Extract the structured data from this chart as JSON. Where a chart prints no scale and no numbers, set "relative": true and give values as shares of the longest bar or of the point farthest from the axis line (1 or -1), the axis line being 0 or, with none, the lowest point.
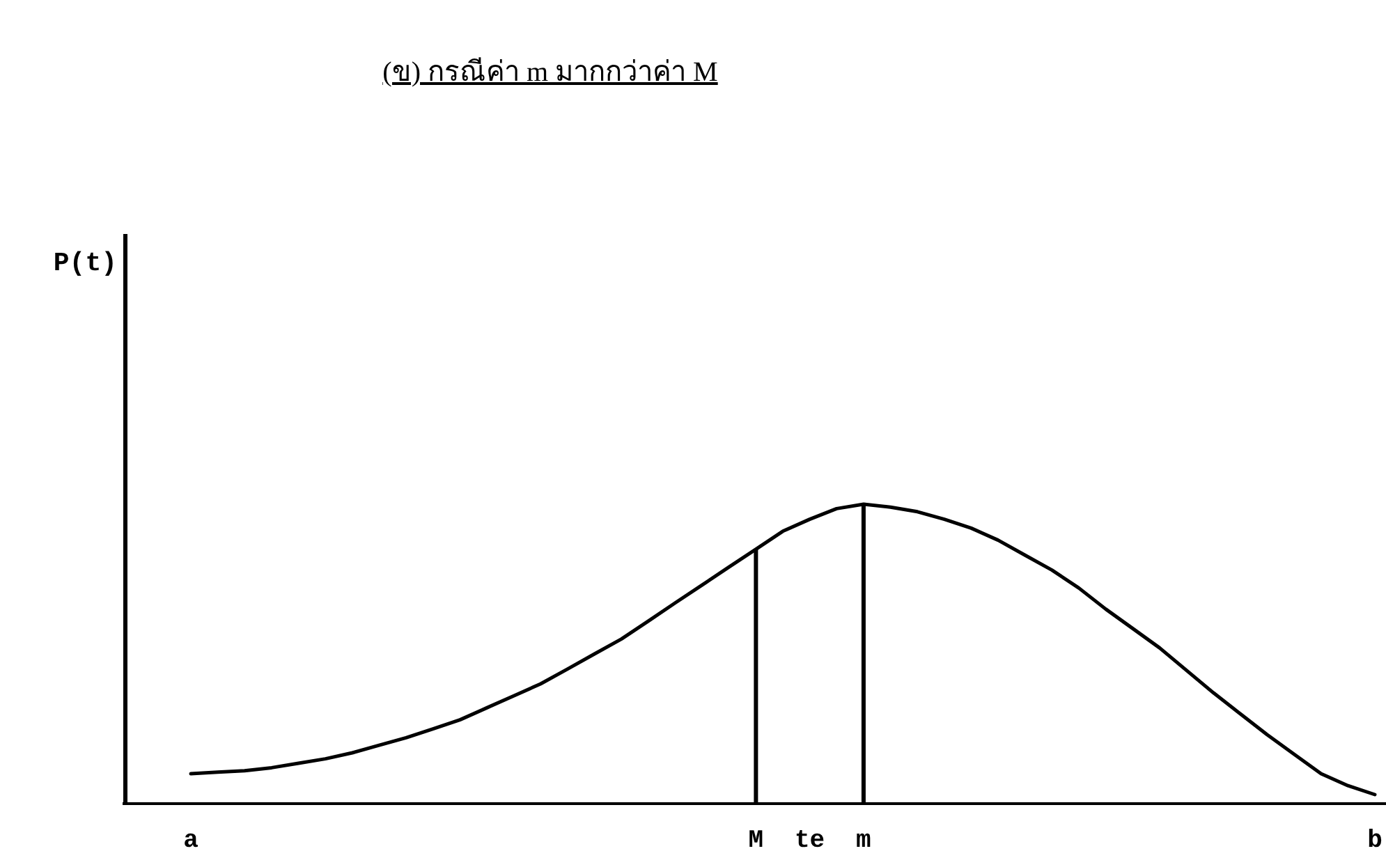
{
  "chart_data": {
    "type": "line",
    "title": "(ข) กรณีค่า m มากกว่าค่า M",
    "annotations": [
      "P(t)"
    ],
    "relative": true,
    "color": "#000000",
    "categories": [
      "a",
      null,
      null,
      null,
      null,
      null,
      null,
      null,
      null,
      null,
      null,
      null,
      null,
      null,
      null,
      null,
      null,
      null,
      null,
      null,
      null,
      "M",
      null,
      "te",
      null,
      "m",
      null,
      null,
      null,
      null,
      null,
      null,
      null,
      null,
      null,
      null,
      null,
      null,
      null,
      null,
      null,
      null,
      null,
      null,
      "b"
    ],
    "values": [
      0.1,
      0.105,
      0.11,
      0.12,
      0.135,
      0.15,
      0.17,
      0.195,
      0.22,
      0.25,
      0.28,
      0.32,
      0.36,
      0.4,
      0.45,
      0.5,
      0.55,
      0.61,
      0.67,
      0.73,
      0.79,
      0.85,
      0.91,
      0.95,
      0.985,
      1,
      0.99,
      0.975,
      0.95,
      0.92,
      0.88,
      0.83,
      0.78,
      0.72,
      0.65,
      0.585,
      0.52,
      0.445,
      0.37,
      0.3,
      0.23,
      0.165,
      0.1,
      0.06,
      0.03
    ],
    "ref_lines": [
      {
        "axis": "x",
        "value": "M"
      },
      {
        "axis": "x",
        "value": "m"
      }
    ]
  }
}
